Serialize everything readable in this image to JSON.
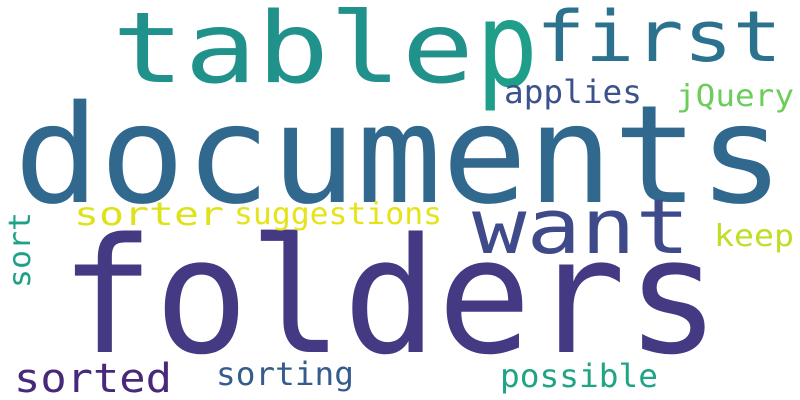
{
  "cloud": {
    "background": "#ffffff",
    "words": [
      {
        "text": "documents",
        "color": "#31688e"
      },
      {
        "text": "folders",
        "color": "#443983"
      },
      {
        "text": "table",
        "color": "#21918c"
      },
      {
        "text": "p",
        "color": "#1f9e89"
      },
      {
        "text": "first",
        "color": "#2c728e"
      },
      {
        "text": "want",
        "color": "#3e4a89"
      },
      {
        "text": "applies",
        "color": "#3b528b"
      },
      {
        "text": "jQuery",
        "color": "#6ccd5a"
      },
      {
        "text": "sorter",
        "color": "#dde318"
      },
      {
        "text": "suggestions",
        "color": "#e5e419"
      },
      {
        "text": "keep",
        "color": "#bddf26"
      },
      {
        "text": "sort",
        "color": "#1fa188"
      },
      {
        "text": "sorted",
        "color": "#482878"
      },
      {
        "text": "sorting",
        "color": "#365c8d"
      },
      {
        "text": "possible",
        "color": "#20a486"
      }
    ]
  }
}
